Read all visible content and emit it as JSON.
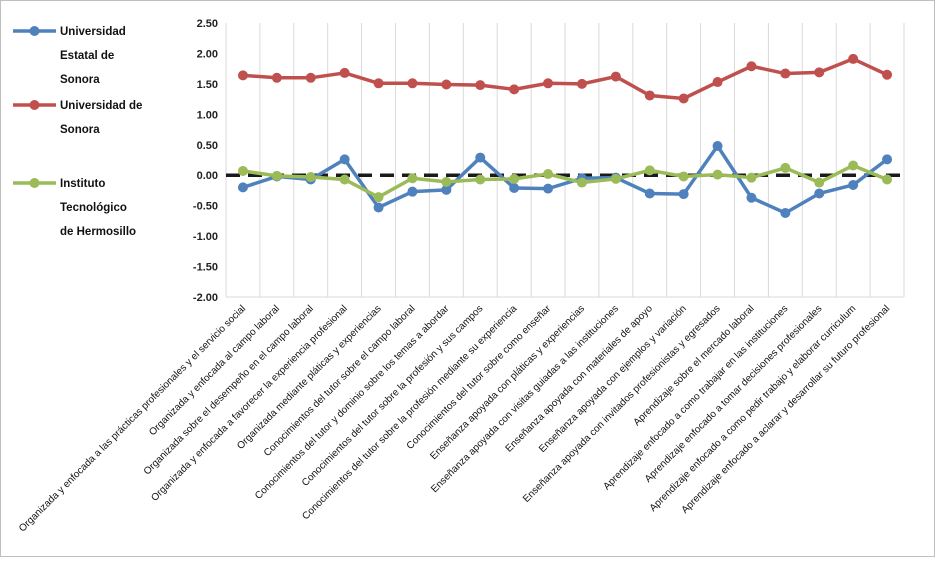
{
  "chart_data": {
    "type": "line",
    "title": "",
    "xlabel": "",
    "ylabel": "",
    "ylim": [
      -2.0,
      2.5
    ],
    "ytick_step": 0.5,
    "yticks": [
      "2.50",
      "2.00",
      "1.50",
      "1.00",
      "0.50",
      "0.00",
      "-0.50",
      "-1.00",
      "-1.50",
      "-2.00"
    ],
    "grid": "vertical",
    "legend_position": "left",
    "baseline": 0,
    "categories": [
      "Organizada y enfocada a las prácticas profesionales y el servicio social",
      "Organizada y enfocada al campo laboral",
      "Organizada sobre el desempeño en el campo laboral",
      "Organizada y enfocada a favorecer la experiencia profesional",
      "Organizada mediante pláticas y experiencias",
      "Conocimientos del tutor sobre el campo laboral",
      "Conocimientos del tutor y dominio sobre los temas a abordar",
      "Conocimientos del tutor sobre la profesión y sus campos",
      "Conocimientos del tutor sobre la profesión mediante su experiencia",
      "Conocimientos del tutor sobre como enseñar",
      "Enseñanza apoyada con pláticas y experiencias",
      "Enseñanza apoyada con visitas guiadas a las instituciones",
      "Enseñanza apoyada con materiales de apoyo",
      "Enseñanza apoyada con ejemplos y variación",
      "Enseñanza apoyada con invitados profesionistas y egresados",
      "Aprendizaje sobre el mercado laboral",
      "Aprendizaje enfocado a como trabajar en las instituciones",
      "Aprendizaje enfocado a tomar decisiones profesionales",
      "Aprendizaje enfocado a como pedir trabajo y elaborar curriculum",
      "Aprendizaje enfocado a aclarar y desarrollar su futuro profesional"
    ],
    "series": [
      {
        "name": "Universidad Estatal de Sonora",
        "legend_lines": [
          "Universidad",
          "Estatal de",
          "Sonora"
        ],
        "color": "#4f81bd",
        "values": [
          -0.2,
          -0.02,
          -0.07,
          0.26,
          -0.53,
          -0.27,
          -0.24,
          0.29,
          -0.21,
          -0.22,
          -0.05,
          -0.04,
          -0.3,
          -0.31,
          0.48,
          -0.37,
          -0.62,
          -0.3,
          -0.16,
          0.26
        ]
      },
      {
        "name": "Universidad de Sonora",
        "legend_lines": [
          "Universidad de",
          "Sonora"
        ],
        "color": "#c0504d",
        "values": [
          1.64,
          1.6,
          1.6,
          1.68,
          1.51,
          1.51,
          1.49,
          1.48,
          1.41,
          1.51,
          1.5,
          1.62,
          1.31,
          1.26,
          1.53,
          1.79,
          1.67,
          1.69,
          1.91,
          1.65
        ]
      },
      {
        "name": "Instituto Tecnológico de Hermosillo",
        "legend_lines": [
          "Instituto",
          "Tecnológico",
          "de Hermosillo"
        ],
        "color": "#9bbb59",
        "values": [
          0.07,
          -0.01,
          -0.03,
          -0.07,
          -0.36,
          -0.05,
          -0.11,
          -0.07,
          -0.06,
          0.02,
          -0.12,
          -0.06,
          0.08,
          -0.02,
          0.01,
          -0.04,
          0.12,
          -0.12,
          0.16,
          -0.07
        ]
      }
    ]
  }
}
